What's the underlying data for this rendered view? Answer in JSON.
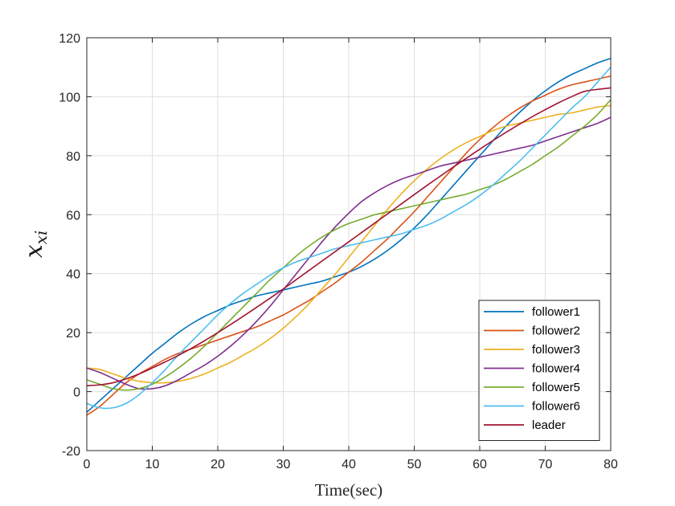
{
  "chart_data": {
    "type": "line",
    "title": "",
    "xlabel": "Time(sec)",
    "ylabel_base": "x",
    "ylabel_sub": "xi",
    "xlim": [
      0,
      80
    ],
    "ylim": [
      -20,
      120
    ],
    "xticks": [
      0,
      10,
      20,
      30,
      40,
      50,
      60,
      70,
      80
    ],
    "yticks": [
      -20,
      0,
      20,
      40,
      60,
      80,
      100,
      120
    ],
    "grid": true,
    "legend_position": "bottom-right",
    "x": [
      0,
      2,
      4,
      6,
      8,
      10,
      12,
      14,
      16,
      18,
      20,
      22,
      24,
      26,
      28,
      30,
      32,
      34,
      36,
      38,
      40,
      42,
      44,
      46,
      48,
      50,
      52,
      54,
      56,
      58,
      60,
      62,
      64,
      66,
      68,
      70,
      72,
      74,
      76,
      78,
      80
    ],
    "series": [
      {
        "name": "follower1",
        "color": "#0072BD",
        "values": [
          -7,
          -3,
          1,
          5,
          9,
          13,
          16.5,
          20,
          23,
          25.5,
          27.5,
          29.5,
          31,
          32.5,
          33.5,
          34.5,
          35.5,
          36.5,
          37.5,
          39,
          40.5,
          42.5,
          45,
          48,
          51.5,
          55.5,
          60,
          65,
          70,
          75,
          80,
          85,
          90,
          94.5,
          98.5,
          102,
          105,
          107.5,
          109.5,
          111.5,
          113
        ]
      },
      {
        "name": "follower2",
        "color": "#D95319",
        "values": [
          -8,
          -5,
          -1,
          3,
          6,
          8.5,
          11,
          13,
          14.5,
          16,
          17.5,
          19,
          20.5,
          22,
          24,
          26,
          28.5,
          31,
          34,
          37,
          40.5,
          44,
          48,
          52,
          56.5,
          61,
          66,
          71,
          76,
          81,
          85.5,
          89.5,
          93,
          96,
          98.5,
          100.5,
          102.5,
          104,
          105,
          106,
          107
        ]
      },
      {
        "name": "follower3",
        "color": "#EDB120",
        "values": [
          8,
          7.5,
          6,
          4.5,
          3.5,
          3,
          3,
          3.5,
          4.5,
          6,
          8,
          10,
          12.5,
          15,
          18,
          21.5,
          25.5,
          30,
          35,
          40,
          45.5,
          51,
          56.5,
          62,
          67,
          71.5,
          75.5,
          79,
          82,
          84.5,
          86.5,
          88.5,
          90,
          91,
          92,
          93,
          94,
          94.5,
          95.5,
          96.5,
          97
        ]
      },
      {
        "name": "follower4",
        "color": "#7E2F8E",
        "values": [
          8,
          6.5,
          4.5,
          2.5,
          1,
          1,
          2,
          4,
          6.5,
          9,
          12,
          15.5,
          19.5,
          24,
          29,
          34.5,
          40,
          45.5,
          51,
          56,
          60.5,
          64.5,
          67.5,
          70,
          72,
          73.5,
          75,
          76.5,
          77.5,
          78.5,
          79.5,
          80.5,
          81.5,
          82.5,
          83.5,
          85,
          86.5,
          88,
          89.5,
          91,
          93
        ]
      },
      {
        "name": "follower5",
        "color": "#77AC30",
        "values": [
          4,
          2.5,
          1,
          0.5,
          1,
          2.5,
          5,
          8,
          11.5,
          15.5,
          20,
          24.5,
          29,
          33.5,
          38,
          42,
          46,
          49.5,
          52.5,
          55,
          57,
          58.5,
          60,
          61,
          62,
          63,
          64,
          65,
          66,
          67,
          68.5,
          70,
          72,
          74.5,
          77,
          80,
          83,
          86.5,
          90,
          94,
          99
        ]
      },
      {
        "name": "follower6",
        "color": "#4DBEEE",
        "values": [
          -4,
          -5.5,
          -5.5,
          -4,
          -1,
          3,
          7.5,
          12.5,
          17,
          21.5,
          26,
          30,
          33.5,
          36.5,
          39.5,
          42,
          44,
          45.5,
          47,
          48.5,
          49.5,
          50.5,
          51.5,
          52.5,
          53.5,
          55,
          56.5,
          58.5,
          61,
          63.5,
          66.5,
          70,
          74,
          78,
          82.5,
          87,
          91.5,
          96,
          100,
          105,
          110
        ]
      },
      {
        "name": "leader",
        "color": "#A2142F",
        "values": [
          2,
          2.3,
          3,
          4.3,
          6,
          8,
          10.1,
          12.3,
          14.7,
          17.3,
          20,
          22.8,
          25.7,
          28.7,
          31.7,
          34.8,
          38,
          41.2,
          44.4,
          47.6,
          50.8,
          54,
          57.2,
          60.4,
          63.6,
          66.8,
          70,
          73.1,
          76.2,
          79.2,
          82.2,
          85.1,
          87.9,
          90.6,
          93.2,
          95.6,
          97.9,
          100,
          101.8,
          102.5,
          103
        ]
      }
    ]
  }
}
